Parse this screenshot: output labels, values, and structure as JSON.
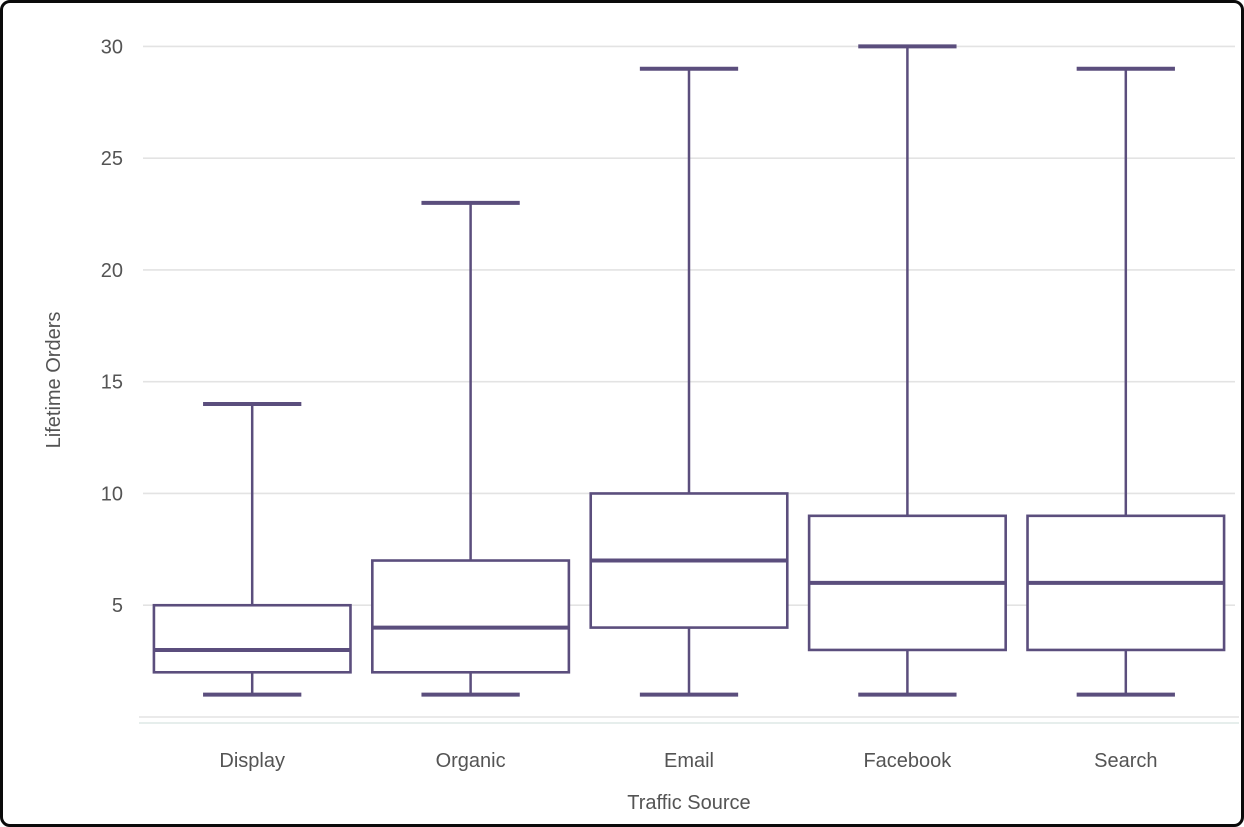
{
  "chart_data": {
    "type": "box",
    "title": "",
    "xlabel": "Traffic Source",
    "ylabel": "Lifetime Orders",
    "categories": [
      "Display",
      "Organic",
      "Email",
      "Facebook",
      "Search"
    ],
    "series": [
      {
        "name": "Display",
        "min": 1,
        "q1": 2,
        "median": 3,
        "q3": 5,
        "max": 14
      },
      {
        "name": "Organic",
        "min": 1,
        "q1": 2,
        "median": 4,
        "q3": 7,
        "max": 23
      },
      {
        "name": "Email",
        "min": 1,
        "q1": 4,
        "median": 7,
        "q3": 10,
        "max": 29
      },
      {
        "name": "Facebook",
        "min": 1,
        "q1": 3,
        "median": 6,
        "q3": 9,
        "max": 30
      },
      {
        "name": "Search",
        "min": 1,
        "q1": 3,
        "median": 6,
        "q3": 9,
        "max": 29
      }
    ],
    "y_ticks": [
      5,
      10,
      15,
      20,
      25,
      30
    ],
    "ylim": [
      0,
      31
    ],
    "grid": "horizontal",
    "legend": "none",
    "colors": {
      "box_stroke": "#5b4e7d",
      "grid_line": "#e3e3e3",
      "axis_band_line": "#dde8e6",
      "label_text": "#545454",
      "background": "#ffffff",
      "frame_border": "#0a0a0a"
    }
  }
}
